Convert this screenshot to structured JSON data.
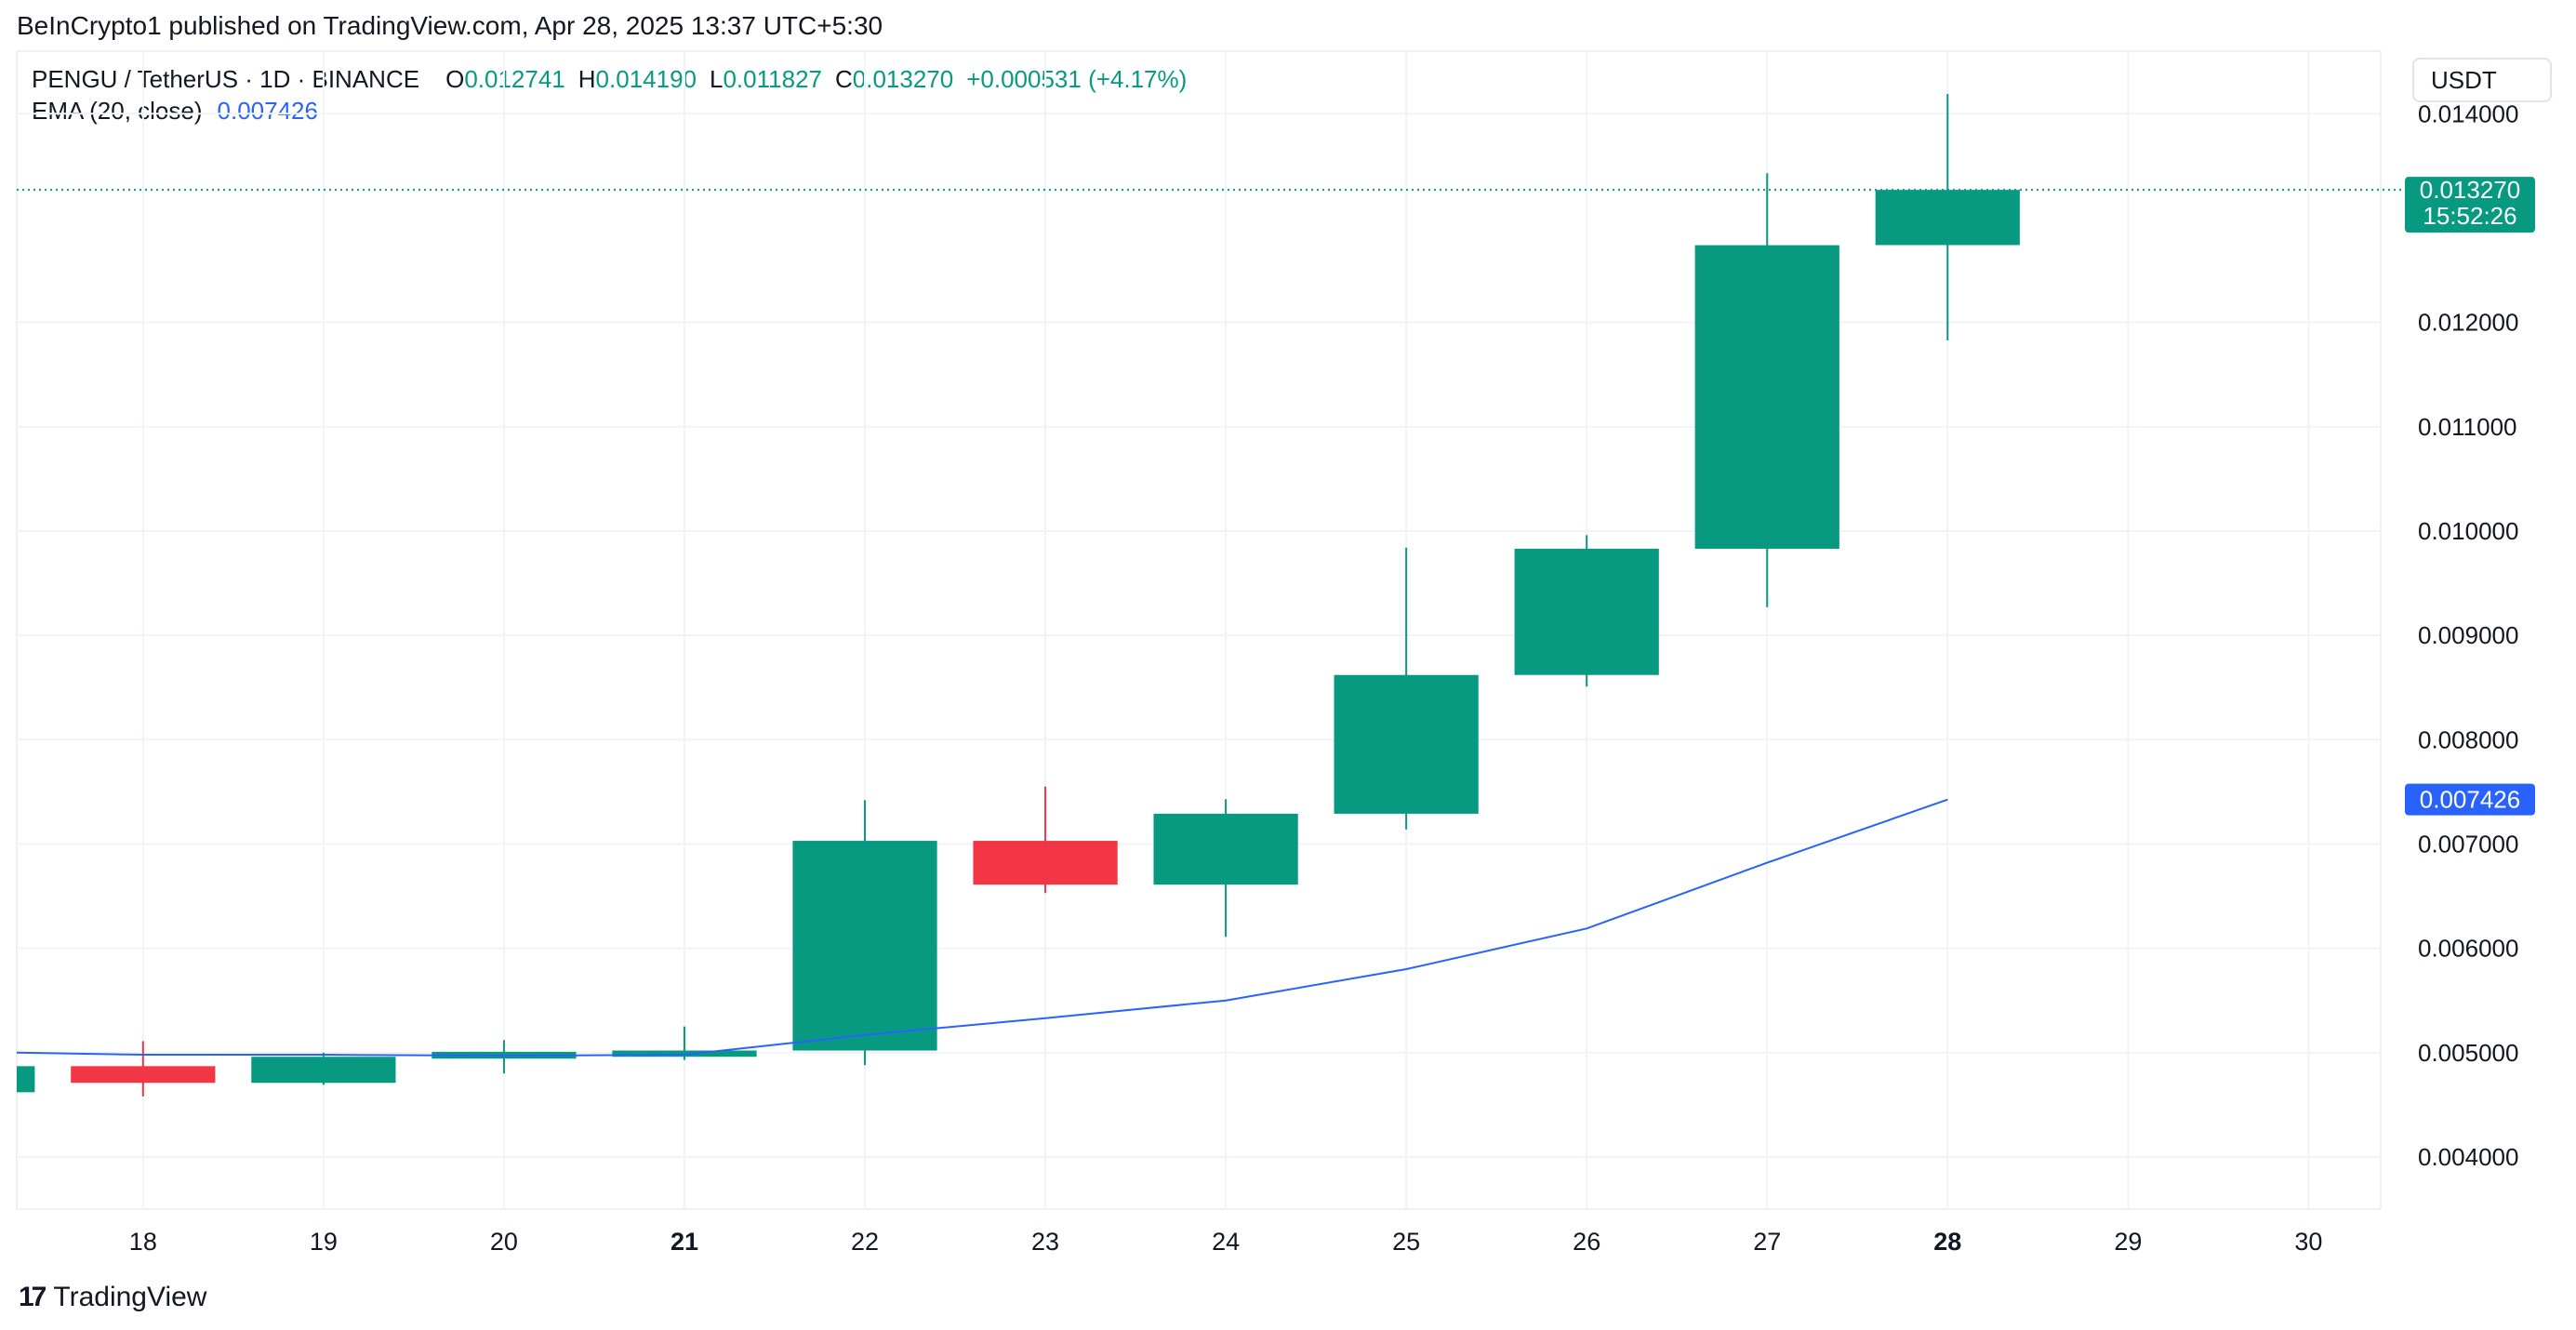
{
  "header": {
    "published": "BeInCrypto1 published on TradingView.com, Apr 28, 2025 13:37 UTC+5:30"
  },
  "legend": {
    "symbol": "PENGU / TetherUS · 1D · BINANCE",
    "open_key": "O",
    "open": "0.012741",
    "high_key": "H",
    "high": "0.014190",
    "low_key": "L",
    "low": "0.011827",
    "close_key": "C",
    "close": "0.013270",
    "change": "+0.000531 (+4.17%)",
    "ema_label": "EMA (20, close)",
    "ema_value": "0.007426"
  },
  "currency": "USDT",
  "footer": {
    "brand": "TradingView",
    "logo_glyph": "17"
  },
  "colors": {
    "up": "#089981",
    "down": "#f23645",
    "ema": "#2962ff",
    "grid": "#f0f3fa",
    "axis_text": "#131722"
  },
  "chart_data": {
    "type": "candlestick",
    "title": "PENGU / TetherUS · 1D · BINANCE",
    "ylim": [
      0.0035,
      0.0146
    ],
    "xlim": [
      17.3,
      30.4
    ],
    "y_ticks": [
      "0.004000",
      "0.005000",
      "0.006000",
      "0.007000",
      "0.008000",
      "0.009000",
      "0.010000",
      "0.011000",
      "0.012000",
      "0.014000"
    ],
    "x_ticks": [
      {
        "day": 18,
        "label": "18",
        "bold": false
      },
      {
        "day": 19,
        "label": "19",
        "bold": false
      },
      {
        "day": 20,
        "label": "20",
        "bold": false
      },
      {
        "day": 21,
        "label": "21",
        "bold": true
      },
      {
        "day": 22,
        "label": "22",
        "bold": false
      },
      {
        "day": 23,
        "label": "23",
        "bold": false
      },
      {
        "day": 24,
        "label": "24",
        "bold": false
      },
      {
        "day": 25,
        "label": "25",
        "bold": false
      },
      {
        "day": 26,
        "label": "26",
        "bold": false
      },
      {
        "day": 27,
        "label": "27",
        "bold": false
      },
      {
        "day": 28,
        "label": "28",
        "bold": true
      },
      {
        "day": 29,
        "label": "29",
        "bold": false
      },
      {
        "day": 30,
        "label": "30",
        "bold": false
      }
    ],
    "candles": [
      {
        "day": 17,
        "open": 0.00462,
        "high": 0.00487,
        "low": 0.00455,
        "close": 0.00487
      },
      {
        "day": 18,
        "open": 0.00487,
        "high": 0.00511,
        "low": 0.00458,
        "close": 0.00471
      },
      {
        "day": 19,
        "open": 0.00471,
        "high": 0.005,
        "low": 0.00469,
        "close": 0.00496
      },
      {
        "day": 20,
        "open": 0.00496,
        "high": 0.00512,
        "low": 0.0048,
        "close": 0.00499
      },
      {
        "day": 21,
        "open": 0.00496,
        "high": 0.00525,
        "low": 0.00493,
        "close": 0.00502
      },
      {
        "day": 22,
        "open": 0.00502,
        "high": 0.00742,
        "low": 0.00488,
        "close": 0.00703
      },
      {
        "day": 23,
        "open": 0.00703,
        "high": 0.00755,
        "low": 0.00653,
        "close": 0.00661
      },
      {
        "day": 24,
        "open": 0.00661,
        "high": 0.00743,
        "low": 0.00611,
        "close": 0.00729
      },
      {
        "day": 25,
        "open": 0.00729,
        "high": 0.00984,
        "low": 0.00714,
        "close": 0.00862
      },
      {
        "day": 26,
        "open": 0.00862,
        "high": 0.00996,
        "low": 0.00851,
        "close": 0.00983
      },
      {
        "day": 27,
        "open": 0.00983,
        "high": 0.01343,
        "low": 0.00927,
        "close": 0.01274
      },
      {
        "day": 28,
        "open": 0.012741,
        "high": 0.01419,
        "low": 0.011827,
        "close": 0.01327
      }
    ],
    "ema": {
      "name": "EMA (20, close)",
      "points": [
        {
          "day": 17.3,
          "value": 0.005
        },
        {
          "day": 18,
          "value": 0.00498
        },
        {
          "day": 19,
          "value": 0.00498
        },
        {
          "day": 20,
          "value": 0.00497
        },
        {
          "day": 21,
          "value": 0.00498
        },
        {
          "day": 22,
          "value": 0.00517
        },
        {
          "day": 23,
          "value": 0.00533
        },
        {
          "day": 24,
          "value": 0.0055
        },
        {
          "day": 25,
          "value": 0.0058
        },
        {
          "day": 26,
          "value": 0.00619
        },
        {
          "day": 27,
          "value": 0.00682
        },
        {
          "day": 28,
          "value": 0.007426
        }
      ]
    },
    "last_price": {
      "value": 0.01327,
      "label": "0.013270",
      "countdown": "15:52:26"
    },
    "ema_last": {
      "value": 0.007426,
      "label": "0.007426"
    }
  }
}
